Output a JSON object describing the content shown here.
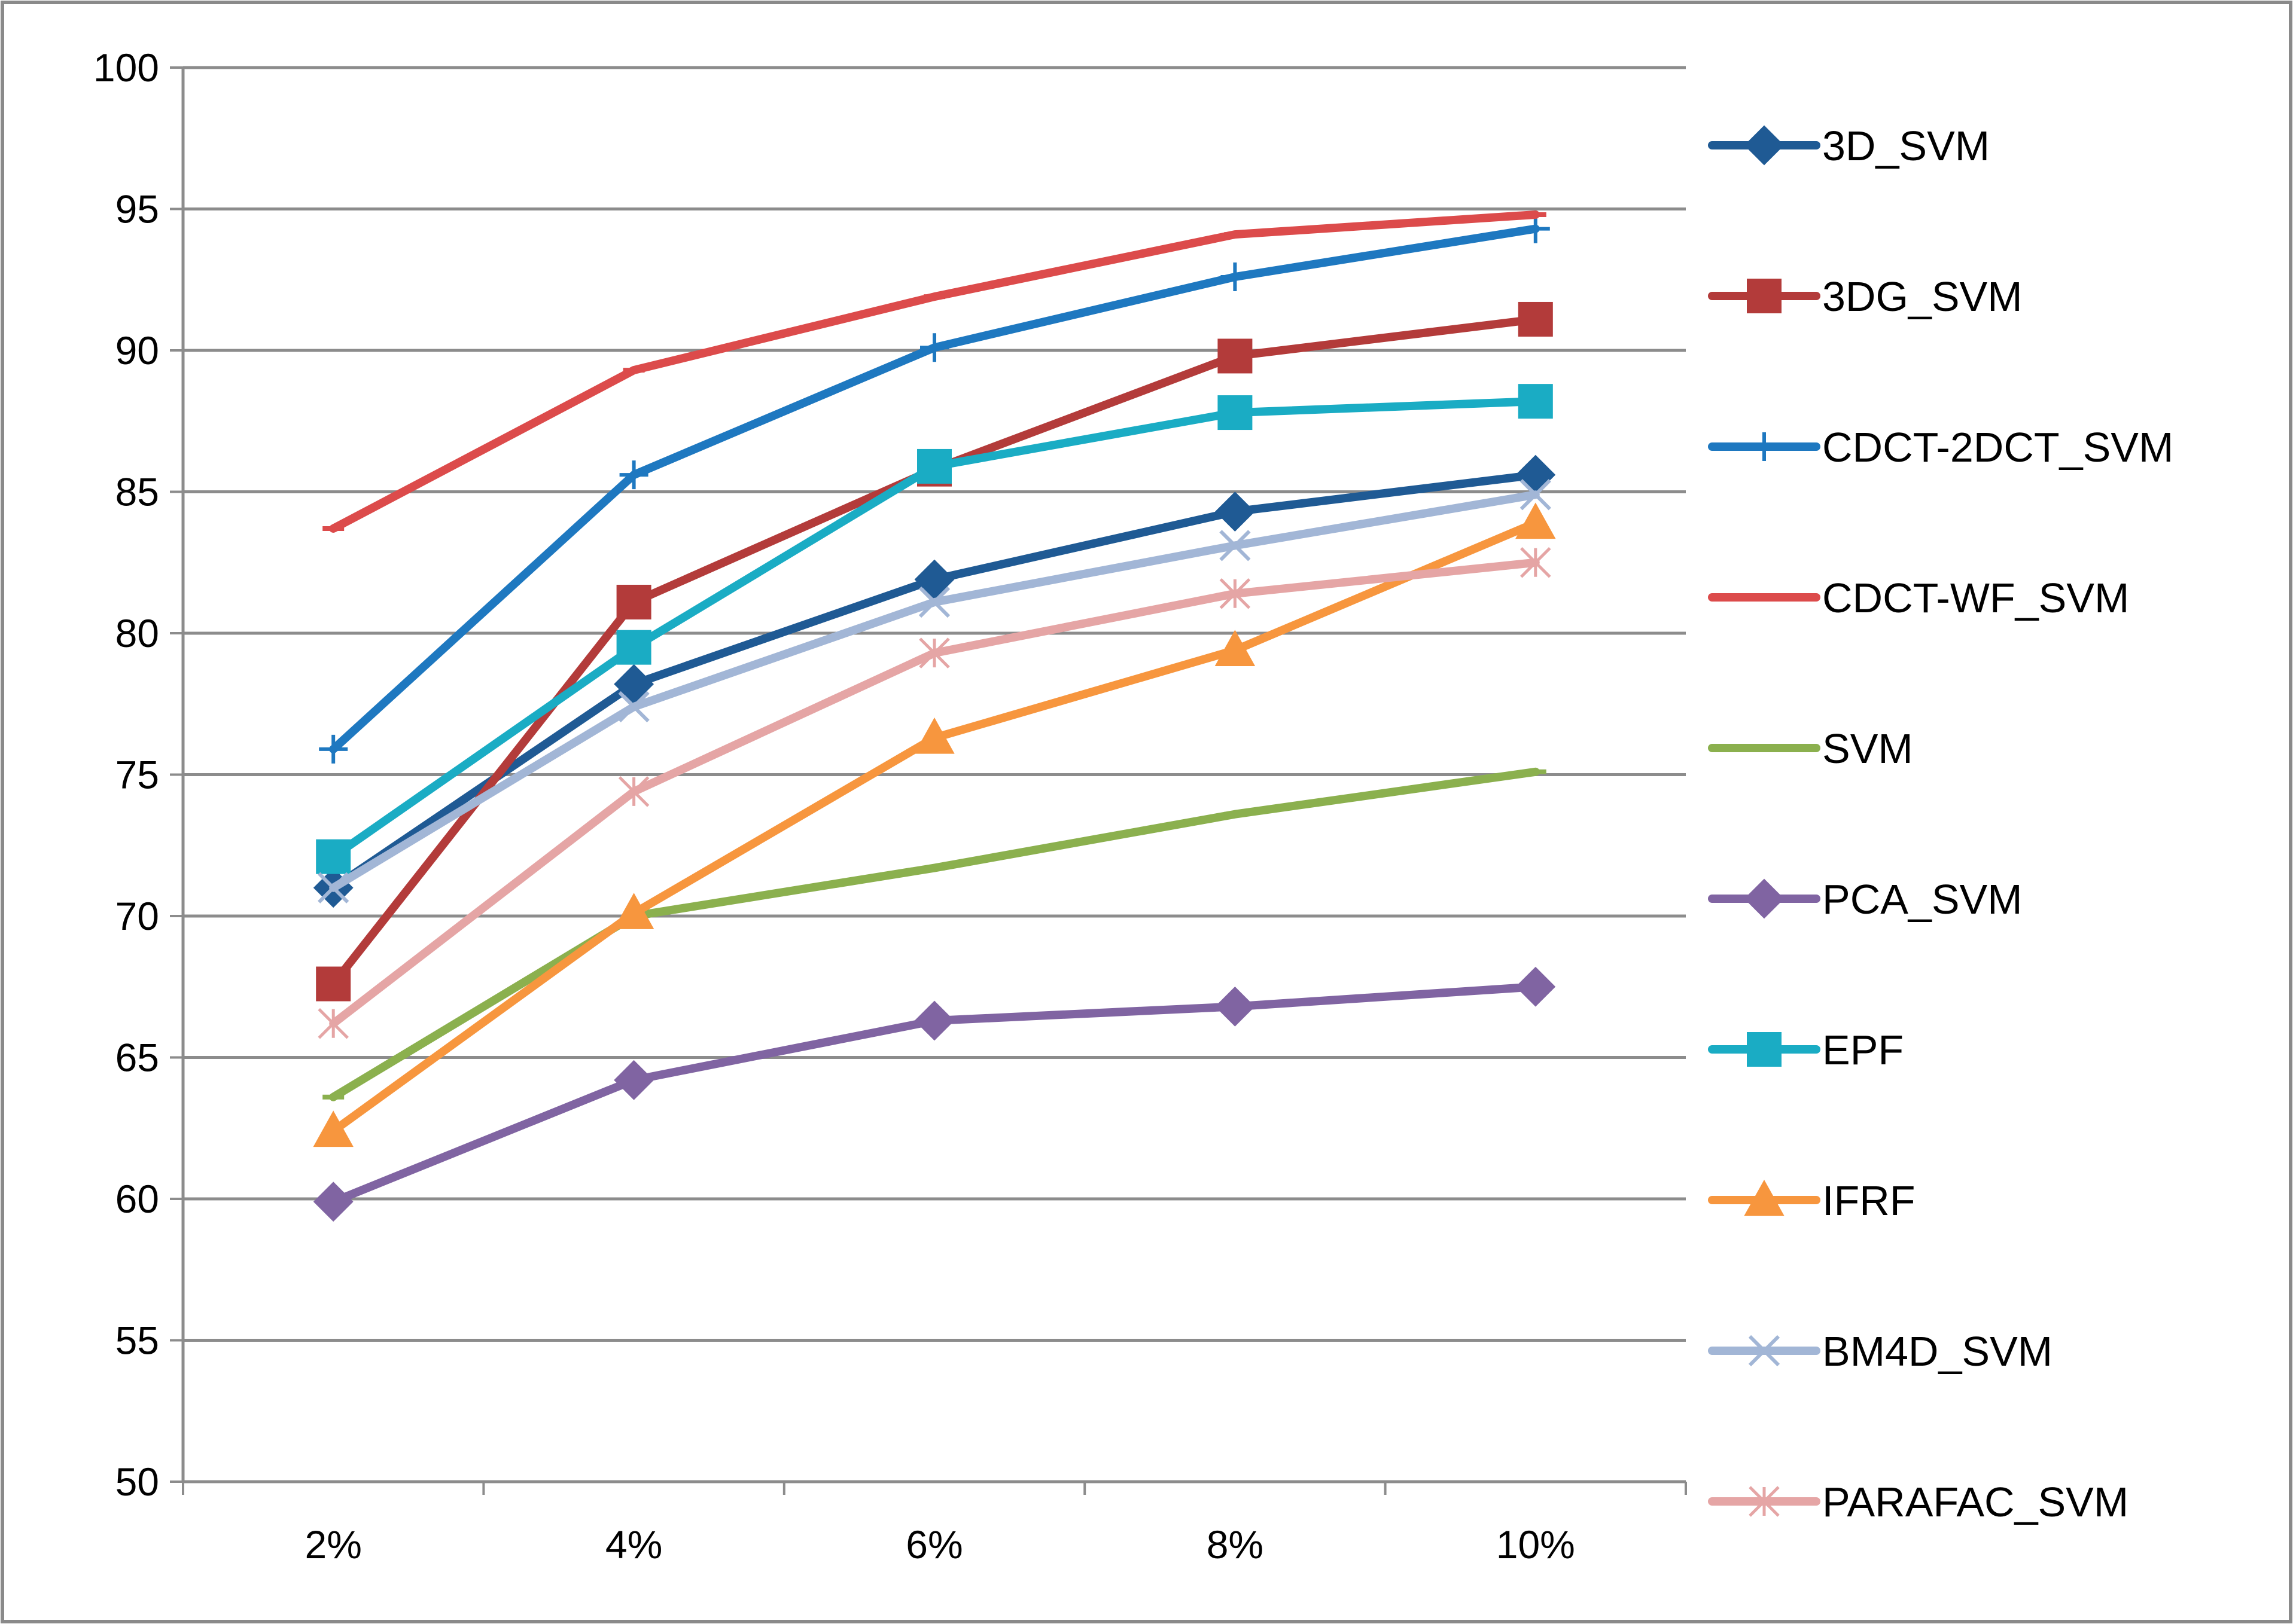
{
  "chart_data": {
    "type": "line",
    "title": "",
    "xlabel": "",
    "ylabel": "",
    "categories": [
      "2%",
      "4%",
      "6%",
      "8%",
      "10%"
    ],
    "ylim": [
      50,
      100
    ],
    "yticks": [
      50,
      55,
      60,
      65,
      70,
      75,
      80,
      85,
      90,
      95,
      100
    ],
    "ytick_labels": [
      "50",
      "55",
      "60",
      "65",
      "70",
      "75",
      "80",
      "85",
      "90",
      "95",
      "100"
    ],
    "grid": true,
    "legend_position": "right",
    "series": [
      {
        "name": "3D_SVM",
        "marker": "diamond",
        "color": "#1F5A94",
        "values": [
          71.0,
          78.2,
          81.9,
          84.3,
          85.6
        ]
      },
      {
        "name": "3DG_SVM",
        "marker": "square",
        "color": "#B33B3A",
        "values": [
          67.6,
          81.1,
          85.8,
          89.8,
          91.1
        ]
      },
      {
        "name": "CDCT-2DCT_SVM",
        "marker": "plus",
        "color": "#1E78C0",
        "values": [
          75.9,
          85.6,
          90.1,
          92.6,
          94.3
        ]
      },
      {
        "name": "CDCT-WF_SVM",
        "marker": "dash",
        "color": "#DC4B4B",
        "values": [
          83.7,
          89.3,
          91.9,
          94.1,
          94.8
        ]
      },
      {
        "name": "SVM",
        "marker": "dash",
        "color": "#8BB04E",
        "values": [
          63.6,
          70.0,
          71.7,
          73.6,
          75.1
        ]
      },
      {
        "name": "PCA_SVM",
        "marker": "diamond",
        "color": "#8064A2",
        "values": [
          59.9,
          64.2,
          66.3,
          66.8,
          67.5
        ]
      },
      {
        "name": "EPF",
        "marker": "square",
        "color": "#1AACC4",
        "values": [
          72.1,
          79.5,
          85.9,
          87.8,
          88.2
        ]
      },
      {
        "name": "IFRF",
        "marker": "triangle",
        "color": "#F7963E",
        "values": [
          62.4,
          70.1,
          76.3,
          79.4,
          83.9
        ]
      },
      {
        "name": "BM4D_SVM",
        "marker": "x",
        "color": "#A2B6D6",
        "values": [
          71.0,
          77.4,
          81.1,
          83.1,
          84.9
        ]
      },
      {
        "name": "PARAFAC_SVM",
        "marker": "asterisk",
        "color": "#E5A5A5",
        "values": [
          66.2,
          74.4,
          79.3,
          81.4,
          82.5
        ]
      }
    ]
  }
}
